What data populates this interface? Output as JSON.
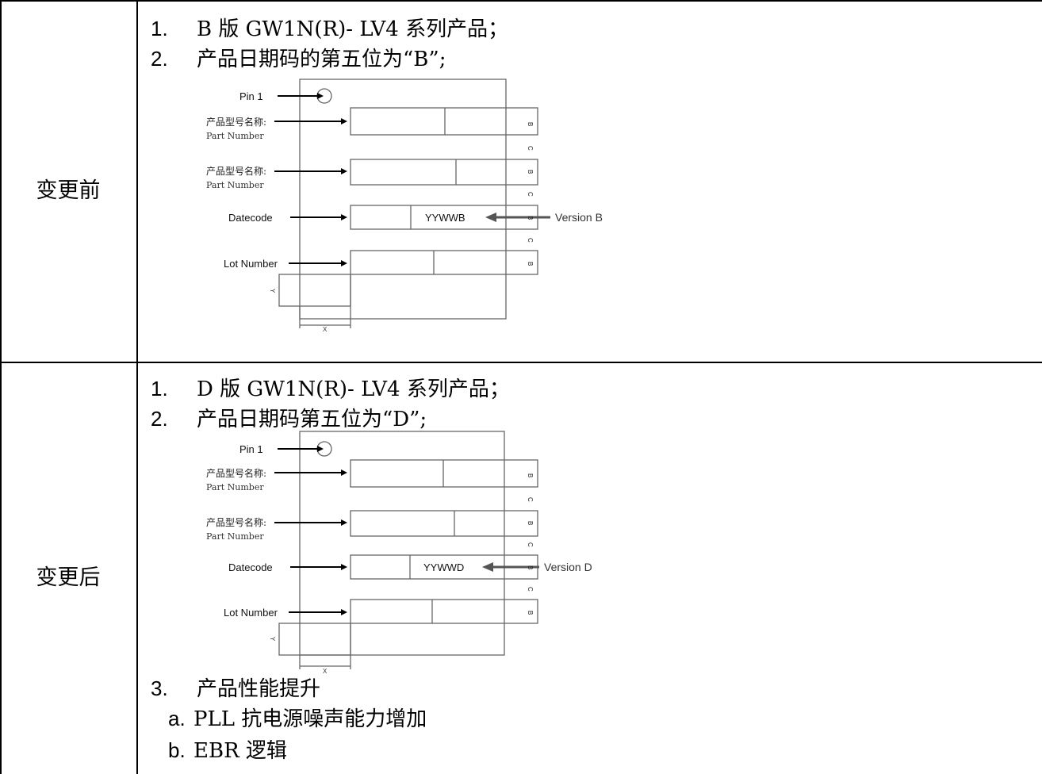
{
  "before": {
    "label": "变更前",
    "items": [
      {
        "num": "1.",
        "text": "B 版 GW1N(R)- LV4 系列产品；"
      },
      {
        "num": "2.",
        "text": "产品日期码的第五位为“B”;"
      }
    ],
    "diagram": {
      "pin": "Pin 1",
      "part_zh_1": "产品型号名称:",
      "part_en_1": "Part Number",
      "part_zh_2": "产品型号名称:",
      "part_en_2": "Part Number",
      "datecode": "Datecode",
      "lot": "Lot Number",
      "code": "YYWWB",
      "version": "Version B",
      "y": "Y",
      "x": "X",
      "side": [
        "B",
        "C",
        "B",
        "C",
        "B",
        "C",
        "B"
      ]
    }
  },
  "after": {
    "label": "变更后",
    "items": [
      {
        "num": "1.",
        "text": "D 版  GW1N(R)- LV4 系列产品；"
      },
      {
        "num": "2.",
        "text": "产品日期码第五位为“D”;"
      },
      {
        "num": "3.",
        "text": "产品性能提升"
      }
    ],
    "subitems": [
      {
        "num": "a.",
        "text": "PLL 抗电源噪声能力增加"
      },
      {
        "num": "b.",
        "text": "EBR 逻辑"
      }
    ],
    "diagram": {
      "pin": "Pin 1",
      "part_zh_1": "产品型号名称:",
      "part_en_1": "Part Number",
      "part_zh_2": "产品型号名称:",
      "part_en_2": "Part Number",
      "datecode": "Datecode",
      "lot": "Lot Number",
      "code": "YYWWD",
      "version": "Version D",
      "y": "Y",
      "x": "X",
      "side": [
        "B",
        "C",
        "B",
        "C",
        "B",
        "C",
        "B"
      ]
    }
  }
}
